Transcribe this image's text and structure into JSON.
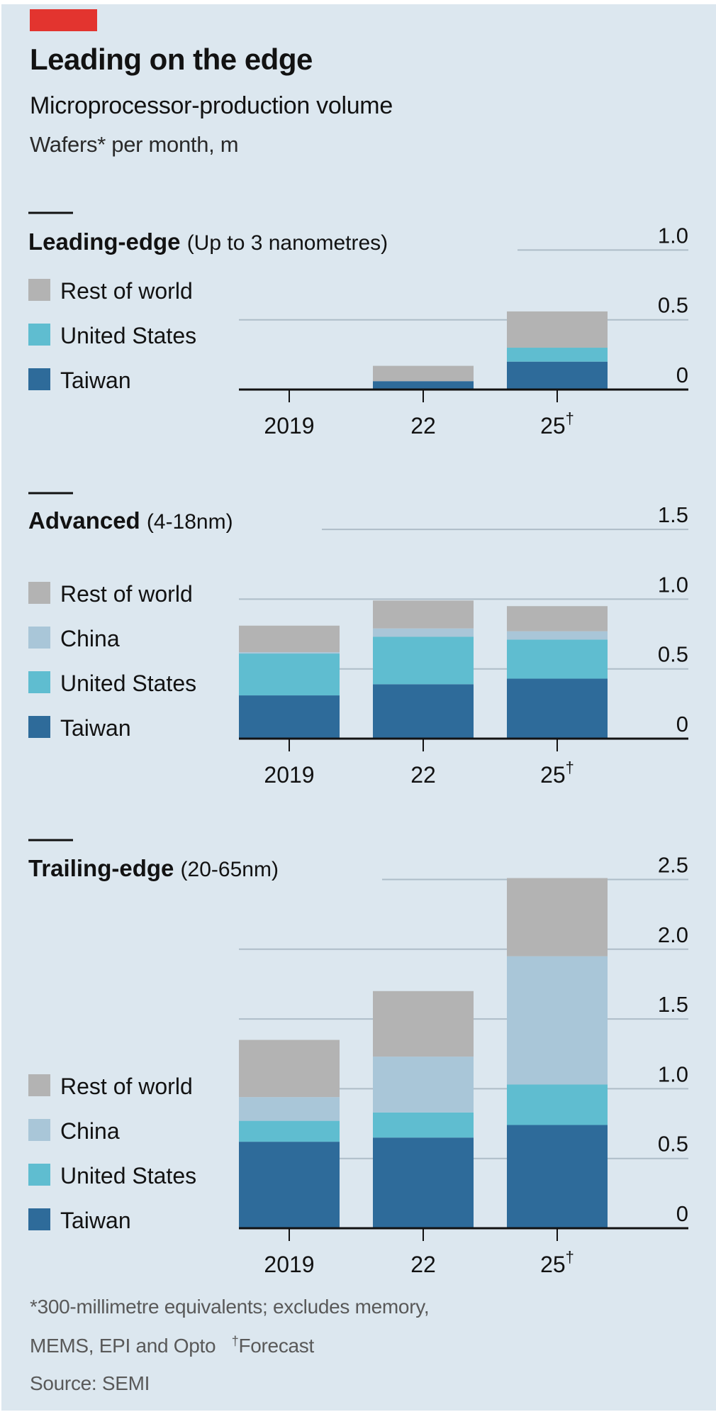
{
  "header": {
    "title": "Leading on the edge",
    "subtitle": "Microprocessor-production volume",
    "unit": "Wafers* per month, m"
  },
  "colors": {
    "background": "#dce7ef",
    "accent_red": "#e3342f",
    "rest_of_world": "#b3b3b3",
    "china": "#a9c6d8",
    "united_states": "#5fbdd0",
    "taiwan": "#2e6b9a",
    "gridline": "#aebdc8",
    "axis": "#121212"
  },
  "footnotes": {
    "line1": "*300-millimetre equivalents; excludes memory,",
    "line2_main": "MEMS, EPI and Opto",
    "line2_dagger": "†",
    "line2_forecast": "Forecast",
    "source": "Source: SEMI"
  },
  "chart_data": [
    {
      "type": "bar",
      "stacked": true,
      "title": "Leading-edge",
      "title_note": "(Up to 3 nanometres)",
      "categories": [
        "2019",
        "22",
        "25†"
      ],
      "ylabel": "Wafers per month, m",
      "ylim": [
        0,
        1.0
      ],
      "yticks": [
        0,
        0.5,
        1.0
      ],
      "ytick_labels": [
        "0",
        "0.5",
        "1.0"
      ],
      "grid": true,
      "legend": [
        "Rest of world",
        "United States",
        "Taiwan"
      ],
      "legend_position": "left",
      "series": [
        {
          "name": "Taiwan",
          "color_key": "taiwan",
          "values": [
            0,
            0.06,
            0.2
          ]
        },
        {
          "name": "United States",
          "color_key": "united_states",
          "values": [
            0,
            0,
            0.1
          ]
        },
        {
          "name": "Rest of world",
          "color_key": "rest_of_world",
          "values": [
            0,
            0.11,
            0.26
          ]
        }
      ]
    },
    {
      "type": "bar",
      "stacked": true,
      "title": "Advanced",
      "title_note": "(4-18nm)",
      "categories": [
        "2019",
        "22",
        "25†"
      ],
      "ylabel": "Wafers per month, m",
      "ylim": [
        0,
        1.5
      ],
      "yticks": [
        0,
        0.5,
        1.0,
        1.5
      ],
      "ytick_labels": [
        "0",
        "0.5",
        "1.0",
        "1.5"
      ],
      "grid": true,
      "legend": [
        "Rest of world",
        "China",
        "United States",
        "Taiwan"
      ],
      "legend_position": "left",
      "series": [
        {
          "name": "Taiwan",
          "color_key": "taiwan",
          "values": [
            0.31,
            0.39,
            0.43
          ]
        },
        {
          "name": "United States",
          "color_key": "united_states",
          "values": [
            0.3,
            0.34,
            0.28
          ]
        },
        {
          "name": "China",
          "color_key": "china",
          "values": [
            0.01,
            0.06,
            0.06
          ]
        },
        {
          "name": "Rest of world",
          "color_key": "rest_of_world",
          "values": [
            0.19,
            0.2,
            0.18
          ]
        }
      ]
    },
    {
      "type": "bar",
      "stacked": true,
      "title": "Trailing-edge",
      "title_note": "(20-65nm)",
      "categories": [
        "2019",
        "22",
        "25†"
      ],
      "ylabel": "Wafers per month, m",
      "ylim": [
        0,
        2.5
      ],
      "yticks": [
        0,
        0.5,
        1.0,
        1.5,
        2.0,
        2.5
      ],
      "ytick_labels": [
        "0",
        "0.5",
        "1.0",
        "1.5",
        "2.0",
        "2.5"
      ],
      "grid": true,
      "legend": [
        "Rest of world",
        "China",
        "United States",
        "Taiwan"
      ],
      "legend_position": "left",
      "series": [
        {
          "name": "Taiwan",
          "color_key": "taiwan",
          "values": [
            0.62,
            0.65,
            0.74
          ]
        },
        {
          "name": "United States",
          "color_key": "united_states",
          "values": [
            0.15,
            0.18,
            0.29
          ]
        },
        {
          "name": "China",
          "color_key": "china",
          "values": [
            0.17,
            0.4,
            0.92
          ]
        },
        {
          "name": "Rest of world",
          "color_key": "rest_of_world",
          "values": [
            0.41,
            0.47,
            0.56
          ]
        }
      ]
    }
  ]
}
